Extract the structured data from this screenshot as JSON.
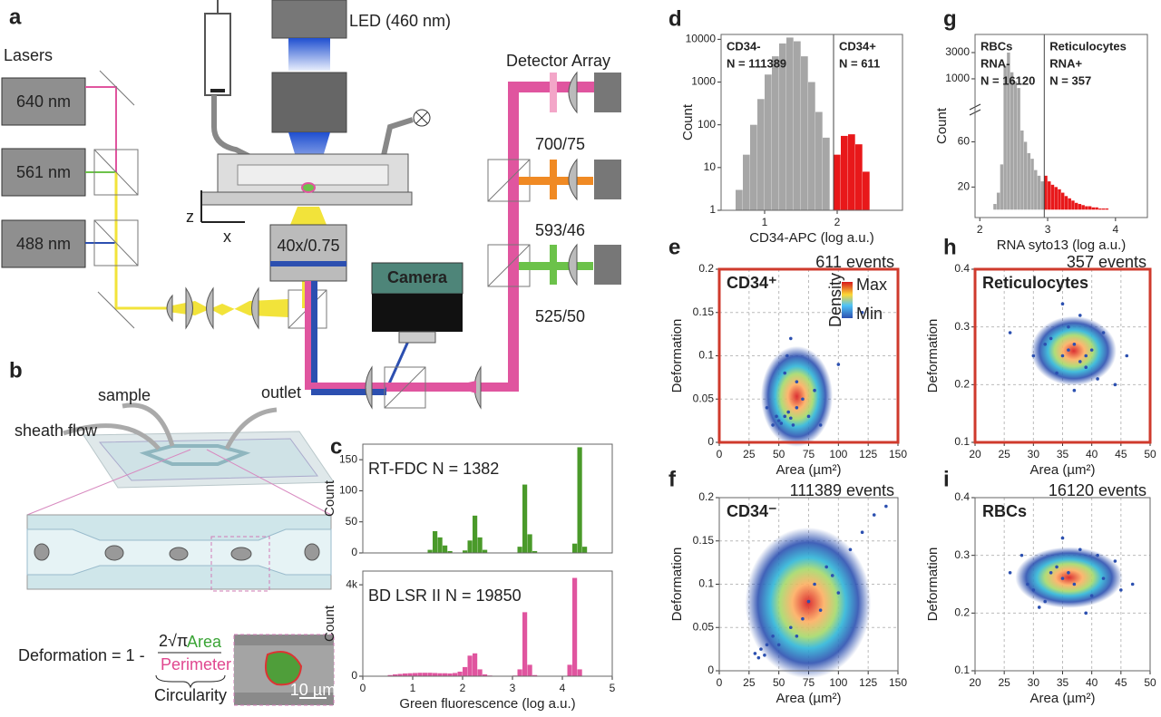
{
  "schematic": {
    "label": "a",
    "lasers_title": "Lasers",
    "lasers": [
      "640 nm",
      "561 nm",
      "488 nm"
    ],
    "led": "LED (460 nm)",
    "objective": "40x/0.75",
    "camera": "Camera",
    "detector_title": "Detector Array",
    "filters": [
      "700/75",
      "593/46",
      "525/50"
    ],
    "axes": [
      "z",
      "x"
    ]
  },
  "chip": {
    "label": "b",
    "sample": "sample",
    "outlet": "outlet",
    "sheath": "sheath flow",
    "formula_lhs": "Deformation = 1 -",
    "numerator_prefix": "2√π",
    "numerator_area": "Area",
    "denominator": "Perimeter",
    "brace_label": "Circularity",
    "scale_bar": "10 µm"
  },
  "chart_data": [
    {
      "type": "histogram",
      "panel": "c",
      "title": "RT-FDC   N = 1382",
      "ylabel": "Count",
      "color": "#4a9a2a",
      "bins": [
        0.5,
        0.6,
        0.7,
        0.8,
        0.9,
        1,
        1.1,
        1.2,
        1.3,
        1.4,
        1.5,
        1.6,
        1.7,
        1.8,
        1.9,
        2,
        2.1,
        2.2,
        2.3,
        2.4,
        2.5,
        2.6,
        2.7,
        2.8,
        2.9,
        3,
        3.1,
        3.2,
        3.3,
        3.4,
        3.5,
        3.6,
        3.7,
        3.8,
        3.9,
        4,
        4.1,
        4.2,
        4.3,
        4.4,
        4.5,
        4.6
      ],
      "values": [
        0,
        0,
        0,
        0,
        0,
        0,
        0,
        0,
        5,
        35,
        25,
        12,
        3,
        0,
        0,
        4,
        20,
        60,
        25,
        5,
        0,
        0,
        0,
        0,
        0,
        0,
        10,
        110,
        30,
        3,
        0,
        0,
        0,
        0,
        0,
        0,
        0,
        15,
        170,
        10,
        0
      ],
      "xlim": [
        0,
        5
      ],
      "ylim": [
        0,
        175
      ],
      "yticks": [
        0,
        50,
        100,
        150
      ]
    },
    {
      "type": "histogram",
      "title": "BD LSR II   N = 19850",
      "ylabel": "Count",
      "xlabel": "Green fluorescence (log a.u.)",
      "color": "#e0559f",
      "bins": [
        0.5,
        0.6,
        0.7,
        0.8,
        0.9,
        1,
        1.1,
        1.2,
        1.3,
        1.4,
        1.5,
        1.6,
        1.7,
        1.8,
        1.9,
        2,
        2.1,
        2.2,
        2.3,
        2.4,
        2.5,
        2.6,
        2.7,
        2.8,
        2.9,
        3,
        3.1,
        3.2,
        3.3,
        3.4,
        3.5,
        3.6,
        3.7,
        3.8,
        3.9,
        4,
        4.1,
        4.2,
        4.3,
        4.4,
        4.5,
        4.6
      ],
      "values": [
        50,
        80,
        100,
        120,
        130,
        140,
        150,
        150,
        150,
        140,
        130,
        130,
        120,
        140,
        200,
        400,
        900,
        1000,
        300,
        80,
        30,
        20,
        20,
        20,
        20,
        30,
        300,
        2800,
        500,
        50,
        20,
        10,
        10,
        10,
        10,
        20,
        500,
        4300,
        300,
        20,
        0
      ],
      "xlim": [
        0,
        5
      ],
      "ylim": [
        0,
        4600
      ],
      "xticks": [
        0,
        1,
        2,
        3,
        4,
        5
      ],
      "yticks": [
        0,
        {
          "value": 4000,
          "label": "4k"
        }
      ]
    },
    {
      "type": "histogram",
      "panel": "d",
      "xlabel": "CD34-APC (log a.u.)",
      "ylabel": "Count",
      "log_y": true,
      "xlim": [
        0.4,
        2.9
      ],
      "ylim": [
        1,
        13000
      ],
      "xticks": [
        1,
        2
      ],
      "yticks": [
        1,
        10,
        100,
        1000,
        10000
      ],
      "threshold": 1.95,
      "series": [
        {
          "name": "CD34-",
          "annotation": "N = 111389",
          "color": "#a6a6a6",
          "bins": [
            0.6,
            0.7,
            0.8,
            0.9,
            1,
            1.1,
            1.2,
            1.3,
            1.4,
            1.5,
            1.6,
            1.7,
            1.8,
            1.9
          ],
          "values": [
            3,
            20,
            100,
            400,
            1500,
            4000,
            8000,
            11000,
            9000,
            4000,
            1000,
            200,
            50
          ]
        },
        {
          "name": "CD34+",
          "annotation": "N = 611",
          "color": "#e8181a",
          "bins": [
            1.95,
            2.05,
            2.15,
            2.25,
            2.35,
            2.45
          ],
          "values": [
            20,
            55,
            60,
            35,
            8
          ]
        }
      ]
    },
    {
      "type": "histogram",
      "panel": "g",
      "xlabel": "RNA syto13 (log a.u.)",
      "ylabel": "Count",
      "xlim": [
        1.93,
        4.47
      ],
      "xticks": [
        2,
        3,
        4
      ],
      "threshold": 2.95,
      "segments": [
        {
          "ylim": [
            -7,
            78
          ],
          "yticks": [
            20,
            60
          ]
        },
        {
          "ylim": [
            100,
            4380
          ],
          "yticks": [
            1000,
            3000
          ]
        }
      ],
      "series": [
        {
          "name": "RBCs",
          "subtitle": "RNA-",
          "annotation": "N = 16120",
          "color": "#a6a6a6",
          "bins": [
            2.2,
            2.25,
            2.3,
            2.35,
            2.4,
            2.45,
            2.5,
            2.55,
            2.6,
            2.65,
            2.7,
            2.75,
            2.8,
            2.85,
            2.9,
            2.95
          ],
          "values": [
            5,
            15,
            40,
            2000,
            3000,
            1500,
            800,
            300,
            70,
            60,
            50,
            45,
            35,
            30,
            25
          ]
        },
        {
          "name": "Reticulocytes",
          "subtitle": "RNA+",
          "annotation": "N = 357",
          "color": "#e8181a",
          "bins": [
            2.95,
            3,
            3.05,
            3.1,
            3.15,
            3.2,
            3.25,
            3.3,
            3.35,
            3.4,
            3.45,
            3.5,
            3.55,
            3.6,
            3.65,
            3.7,
            3.75,
            3.8,
            3.85,
            3.9
          ],
          "values": [
            30,
            25,
            22,
            20,
            18,
            15,
            12,
            10,
            8,
            6,
            5,
            4,
            3,
            3,
            2,
            2,
            1,
            1,
            1
          ]
        }
      ]
    },
    {
      "type": "scatter",
      "panel": "e",
      "title": "CD34⁺",
      "events": "611 events",
      "xlabel": "Area (µm²)",
      "ylabel": "Deformation",
      "grid": true,
      "frame_color": "#cf3a2c",
      "color": "#2c50b0",
      "density_legend": {
        "title": "Density",
        "max": "Max",
        "min": "Min"
      },
      "xlim": [
        0,
        150
      ],
      "ylim": [
        0,
        0.2
      ],
      "xticks": [
        0,
        25,
        50,
        75,
        100,
        125,
        150
      ],
      "yticks": [
        0,
        0.05,
        0.1,
        0.15,
        0.2
      ],
      "x": [
        50,
        55,
        60,
        52,
        58,
        62,
        48,
        65,
        70,
        45,
        75,
        80,
        57,
        55,
        60,
        100,
        120,
        65,
        85,
        40
      ],
      "y": [
        0.025,
        0.03,
        0.028,
        0.022,
        0.035,
        0.02,
        0.03,
        0.04,
        0.05,
        0.02,
        0.03,
        0.06,
        0.1,
        0.08,
        0.12,
        0.09,
        0.15,
        0.07,
        0.02,
        0.04
      ]
    },
    {
      "type": "scatter",
      "panel": "h",
      "title": "Reticulocytes",
      "events": "357 events",
      "xlabel": "Area (µm²)",
      "ylabel": "Deformation",
      "grid": true,
      "frame_color": "#cf3a2c",
      "color": "#2c50b0",
      "xlim": [
        20,
        50
      ],
      "ylim": [
        0.1,
        0.4
      ],
      "xticks": [
        20,
        25,
        30,
        35,
        40,
        45,
        50
      ],
      "yticks": [
        0.1,
        0.2,
        0.3,
        0.4
      ],
      "x": [
        35,
        36,
        37,
        38,
        39,
        40,
        34,
        33,
        41,
        42,
        30,
        44,
        36,
        38,
        26,
        46,
        37,
        39,
        35,
        32
      ],
      "y": [
        0.25,
        0.26,
        0.27,
        0.24,
        0.25,
        0.26,
        0.22,
        0.28,
        0.21,
        0.29,
        0.25,
        0.2,
        0.3,
        0.32,
        0.29,
        0.25,
        0.19,
        0.23,
        0.34,
        0.27
      ]
    },
    {
      "type": "scatter",
      "panel": "f",
      "title": "CD34⁻",
      "events": "111389 events",
      "xlabel": "Area (µm²)",
      "ylabel": "Deformation",
      "grid": true,
      "color": "#2c50b0",
      "xlim": [
        0,
        150
      ],
      "ylim": [
        0,
        0.2
      ],
      "xticks": [
        0,
        25,
        50,
        75,
        100,
        125,
        150
      ],
      "yticks": [
        0,
        0.05,
        0.1,
        0.15,
        0.2
      ],
      "x": [
        30,
        35,
        38,
        40,
        33,
        45,
        60,
        70,
        75,
        80,
        90,
        100,
        110,
        120,
        130,
        50,
        65,
        85,
        95,
        140
      ],
      "y": [
        0.02,
        0.025,
        0.018,
        0.03,
        0.015,
        0.04,
        0.05,
        0.06,
        0.08,
        0.1,
        0.12,
        0.09,
        0.14,
        0.16,
        0.18,
        0.03,
        0.04,
        0.07,
        0.11,
        0.19
      ]
    },
    {
      "type": "scatter",
      "panel": "i",
      "title": "RBCs",
      "events": "16120 events",
      "xlabel": "Area (µm²)",
      "ylabel": "Deformation",
      "grid": true,
      "color": "#2c50b0",
      "xlim": [
        20,
        50
      ],
      "ylim": [
        0.1,
        0.4
      ],
      "xticks": [
        20,
        25,
        30,
        35,
        40,
        45,
        50
      ],
      "yticks": [
        0.1,
        0.2,
        0.3,
        0.4
      ],
      "x": [
        33,
        34,
        35,
        36,
        37,
        30,
        40,
        28,
        42,
        45,
        32,
        38,
        26,
        47,
        35,
        31,
        39,
        44,
        29,
        41
      ],
      "y": [
        0.27,
        0.28,
        0.26,
        0.27,
        0.25,
        0.24,
        0.23,
        0.3,
        0.26,
        0.24,
        0.22,
        0.31,
        0.27,
        0.25,
        0.33,
        0.21,
        0.2,
        0.29,
        0.25,
        0.3
      ]
    }
  ]
}
